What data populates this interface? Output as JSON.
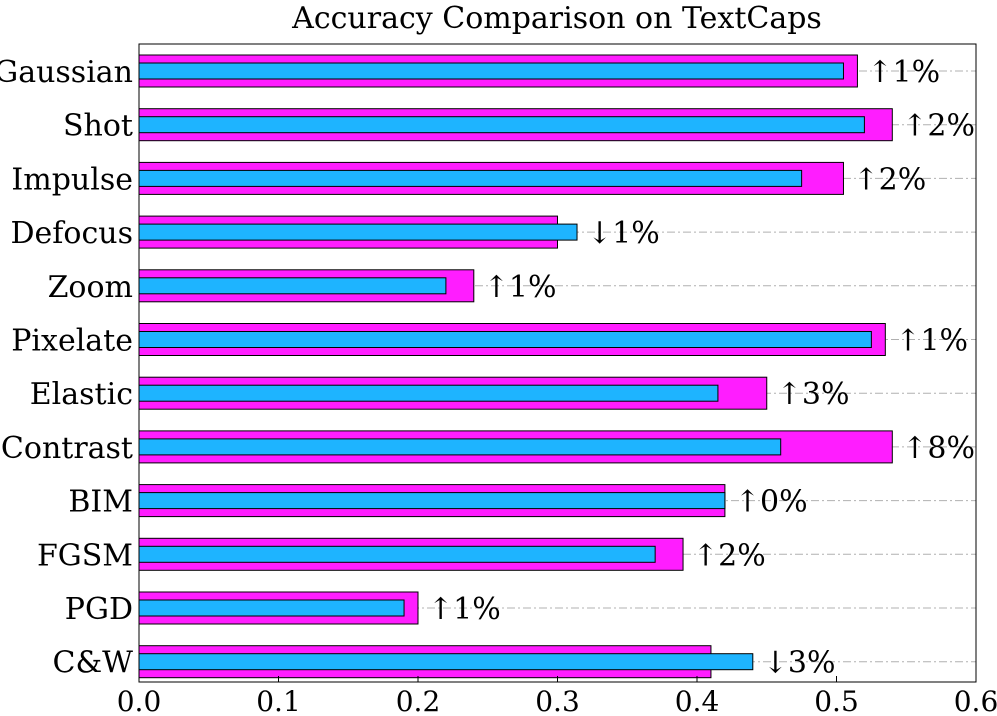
{
  "chart_data": {
    "type": "bar",
    "orientation": "horizontal",
    "title": "Accuracy Comparison on TextCaps",
    "xlim": [
      0.0,
      0.6
    ],
    "x_ticks": [
      "0.0",
      "0.1",
      "0.2",
      "0.3",
      "0.4",
      "0.5",
      "0.6"
    ],
    "grid": "horizontal dash-dot lines at each category",
    "categories": [
      "Gaussian",
      "Shot",
      "Impulse",
      "Defocus",
      "Zoom",
      "Pixelate",
      "Elastic",
      "Contrast",
      "BIM",
      "FGSM",
      "PGD",
      "C&W"
    ],
    "series": [
      {
        "color": "#ff1dff",
        "values": [
          0.515,
          0.54,
          0.505,
          0.3,
          0.24,
          0.535,
          0.45,
          0.54,
          0.42,
          0.39,
          0.2,
          0.41
        ]
      },
      {
        "color": "#1eb4ff",
        "values": [
          0.505,
          0.52,
          0.475,
          0.314,
          0.22,
          0.525,
          0.415,
          0.46,
          0.42,
          0.37,
          0.19,
          0.44
        ]
      }
    ],
    "annotations": [
      "↑1%",
      "↑2%",
      "↑2%",
      "↓1%",
      "↑1%",
      "↑1%",
      "↑3%",
      "↑8%",
      "↑0%",
      "↑2%",
      "↑1%",
      "↓3%"
    ]
  }
}
